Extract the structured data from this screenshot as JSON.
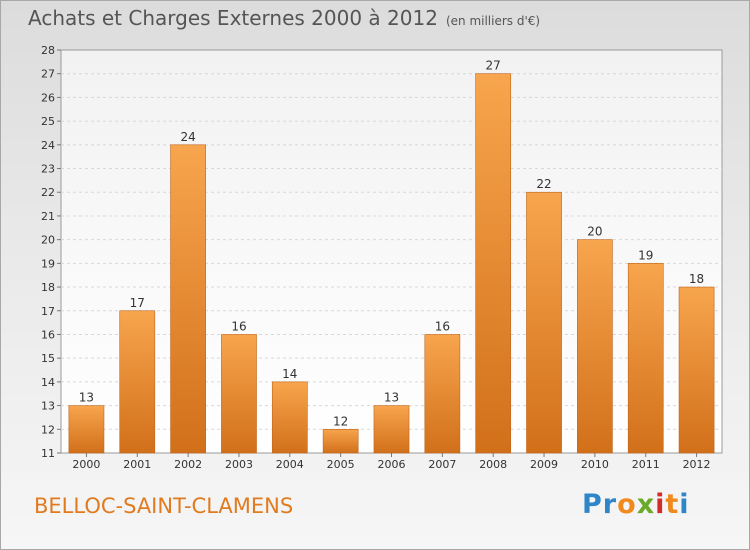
{
  "title": "Achats et Charges Externes 2000 à 2012",
  "subtitle": "(en milliers d'€)",
  "commune": "BELLOC-SAINT-CLAMENS",
  "logo": {
    "text": "Proxiti",
    "letter_colors": [
      "#2e86c8",
      "#2e86c8",
      "#f08a1c",
      "#6aaa2b",
      "#d42b2b",
      "#f08a1c",
      "#2e86c8"
    ]
  },
  "colors": {
    "bar_top": "#f7a54e",
    "bar_bottom": "#d2701a",
    "title": "#555555",
    "commune": "#e07b20"
  },
  "chart_data": {
    "type": "bar",
    "categories": [
      "2000",
      "2001",
      "2002",
      "2003",
      "2004",
      "2005",
      "2006",
      "2007",
      "2008",
      "2009",
      "2010",
      "2011",
      "2012"
    ],
    "values": [
      13,
      17,
      24,
      16,
      14,
      12,
      13,
      16,
      27,
      22,
      20,
      19,
      18
    ],
    "ylim": [
      11,
      28
    ],
    "yticks": [
      11,
      12,
      13,
      14,
      15,
      16,
      17,
      18,
      19,
      20,
      21,
      22,
      23,
      24,
      25,
      26,
      27,
      28
    ],
    "grid": true,
    "title": "Achats et Charges Externes 2000 à 2012",
    "xlabel": "",
    "ylabel": ""
  }
}
